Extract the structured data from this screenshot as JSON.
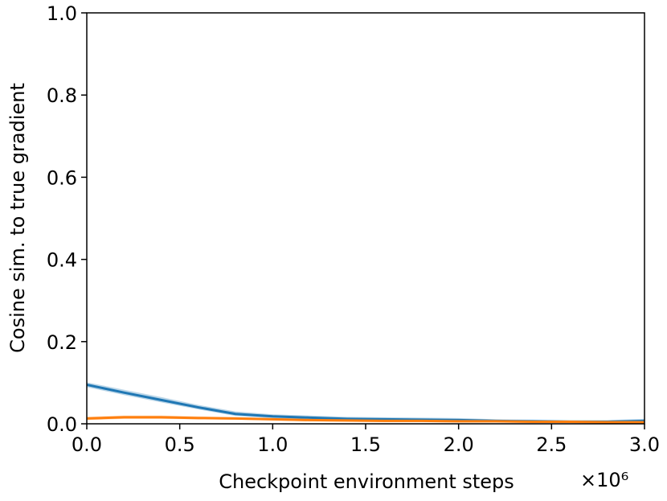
{
  "chart_data": {
    "type": "line",
    "x_label": "Checkpoint environment steps",
    "y_label": "Cosine sim. to true gradient",
    "x_offset_text": "×10⁶",
    "x": [
      0,
      0.2,
      0.4,
      0.6,
      0.8,
      1.0,
      1.2,
      1.4,
      1.6,
      1.8,
      2.0,
      2.2,
      2.4,
      2.6,
      2.8,
      3.0
    ],
    "series": [
      {
        "color": "#1f77b4",
        "values": [
          0.095,
          0.076,
          0.058,
          0.04,
          0.024,
          0.018,
          0.015,
          0.012,
          0.011,
          0.01,
          0.009,
          0.007,
          0.006,
          0.005,
          0.005,
          0.007
        ],
        "lower": [
          0.089,
          0.07,
          0.052,
          0.035,
          0.019,
          0.014,
          0.011,
          0.008,
          0.007,
          0.006,
          0.005,
          0.004,
          0.003,
          0.002,
          0.002,
          0.003
        ],
        "upper": [
          0.101,
          0.083,
          0.065,
          0.046,
          0.03,
          0.023,
          0.02,
          0.017,
          0.016,
          0.015,
          0.014,
          0.011,
          0.01,
          0.009,
          0.009,
          0.012
        ]
      },
      {
        "color": "#ff7f0e",
        "values": [
          0.013,
          0.016,
          0.016,
          0.014,
          0.013,
          0.011,
          0.009,
          0.008,
          0.007,
          0.007,
          0.006,
          0.006,
          0.005,
          0.005,
          0.004,
          0.004
        ],
        "lower": [
          0.009,
          0.012,
          0.012,
          0.011,
          0.01,
          0.008,
          0.006,
          0.005,
          0.004,
          0.004,
          0.003,
          0.003,
          0.002,
          0.002,
          0.001,
          0.001
        ],
        "upper": [
          0.017,
          0.02,
          0.02,
          0.018,
          0.016,
          0.014,
          0.012,
          0.011,
          0.01,
          0.01,
          0.009,
          0.009,
          0.008,
          0.008,
          0.007,
          0.007
        ]
      }
    ],
    "xlim": [
      0,
      3.0
    ],
    "xticks": [
      {
        "value": 0,
        "label": "0.0"
      },
      {
        "value": 0.5,
        "label": "0.5"
      },
      {
        "value": 1,
        "label": "1.0"
      },
      {
        "value": 1.5,
        "label": "1.5"
      },
      {
        "value": 2,
        "label": "2.0"
      },
      {
        "value": 2.5,
        "label": "2.5"
      },
      {
        "value": 3,
        "label": "3.0"
      }
    ],
    "ylim": [
      0,
      1.0
    ],
    "yticks": [
      {
        "value": 0,
        "label": "0.0"
      },
      {
        "value": 0.2,
        "label": "0.2"
      },
      {
        "value": 0.4,
        "label": "0.4"
      },
      {
        "value": 0.6,
        "label": "0.6"
      },
      {
        "value": 0.8,
        "label": "0.8"
      },
      {
        "value": 1,
        "label": "1.0"
      }
    ],
    "grid": false
  }
}
